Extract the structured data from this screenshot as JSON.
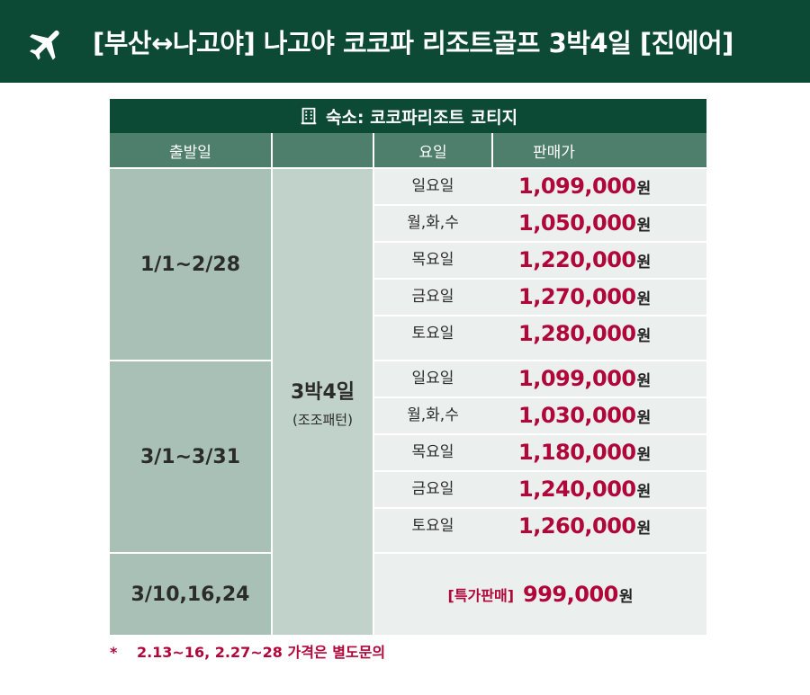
{
  "header": {
    "icon": "airplane-icon",
    "title": "[부산↔나고야] 나고야 코코파 리조트골프 3박4일 [진에어]",
    "bg_color": "#0d4a35"
  },
  "hotel": {
    "icon": "building-icon",
    "label": "숙소: 코코파리조트 코티지"
  },
  "columns": {
    "date": "출발일",
    "day": "요일",
    "price": "판매가"
  },
  "package": {
    "nights": "3박4일",
    "pattern": "(조조패턴)"
  },
  "groups": [
    {
      "date": "1/1~2/28",
      "rows": [
        {
          "day": "일요일",
          "price": "1,099,000",
          "unit": "원"
        },
        {
          "day": "월,화,수",
          "price": "1,050,000",
          "unit": "원"
        },
        {
          "day": "목요일",
          "price": "1,220,000",
          "unit": "원"
        },
        {
          "day": "금요일",
          "price": "1,270,000",
          "unit": "원"
        },
        {
          "day": "토요일",
          "price": "1,280,000",
          "unit": "원"
        }
      ]
    },
    {
      "date": "3/1~3/31",
      "rows": [
        {
          "day": "일요일",
          "price": "1,099,000",
          "unit": "원"
        },
        {
          "day": "월,화,수",
          "price": "1,030,000",
          "unit": "원"
        },
        {
          "day": "목요일",
          "price": "1,180,000",
          "unit": "원"
        },
        {
          "day": "금요일",
          "price": "1,240,000",
          "unit": "원"
        },
        {
          "day": "토요일",
          "price": "1,260,000",
          "unit": "원"
        }
      ]
    }
  ],
  "special": {
    "date": "3/10,16,24",
    "tag": "[특가판매]",
    "price": "999,000",
    "unit": "원"
  },
  "note": {
    "star": "*",
    "text": "2.13~16, 2.27~28 가격은 별도문의"
  },
  "colors": {
    "accent_price": "#b0063a",
    "header_green": "#0d4a35",
    "subheader_green": "#4e7e6c"
  }
}
